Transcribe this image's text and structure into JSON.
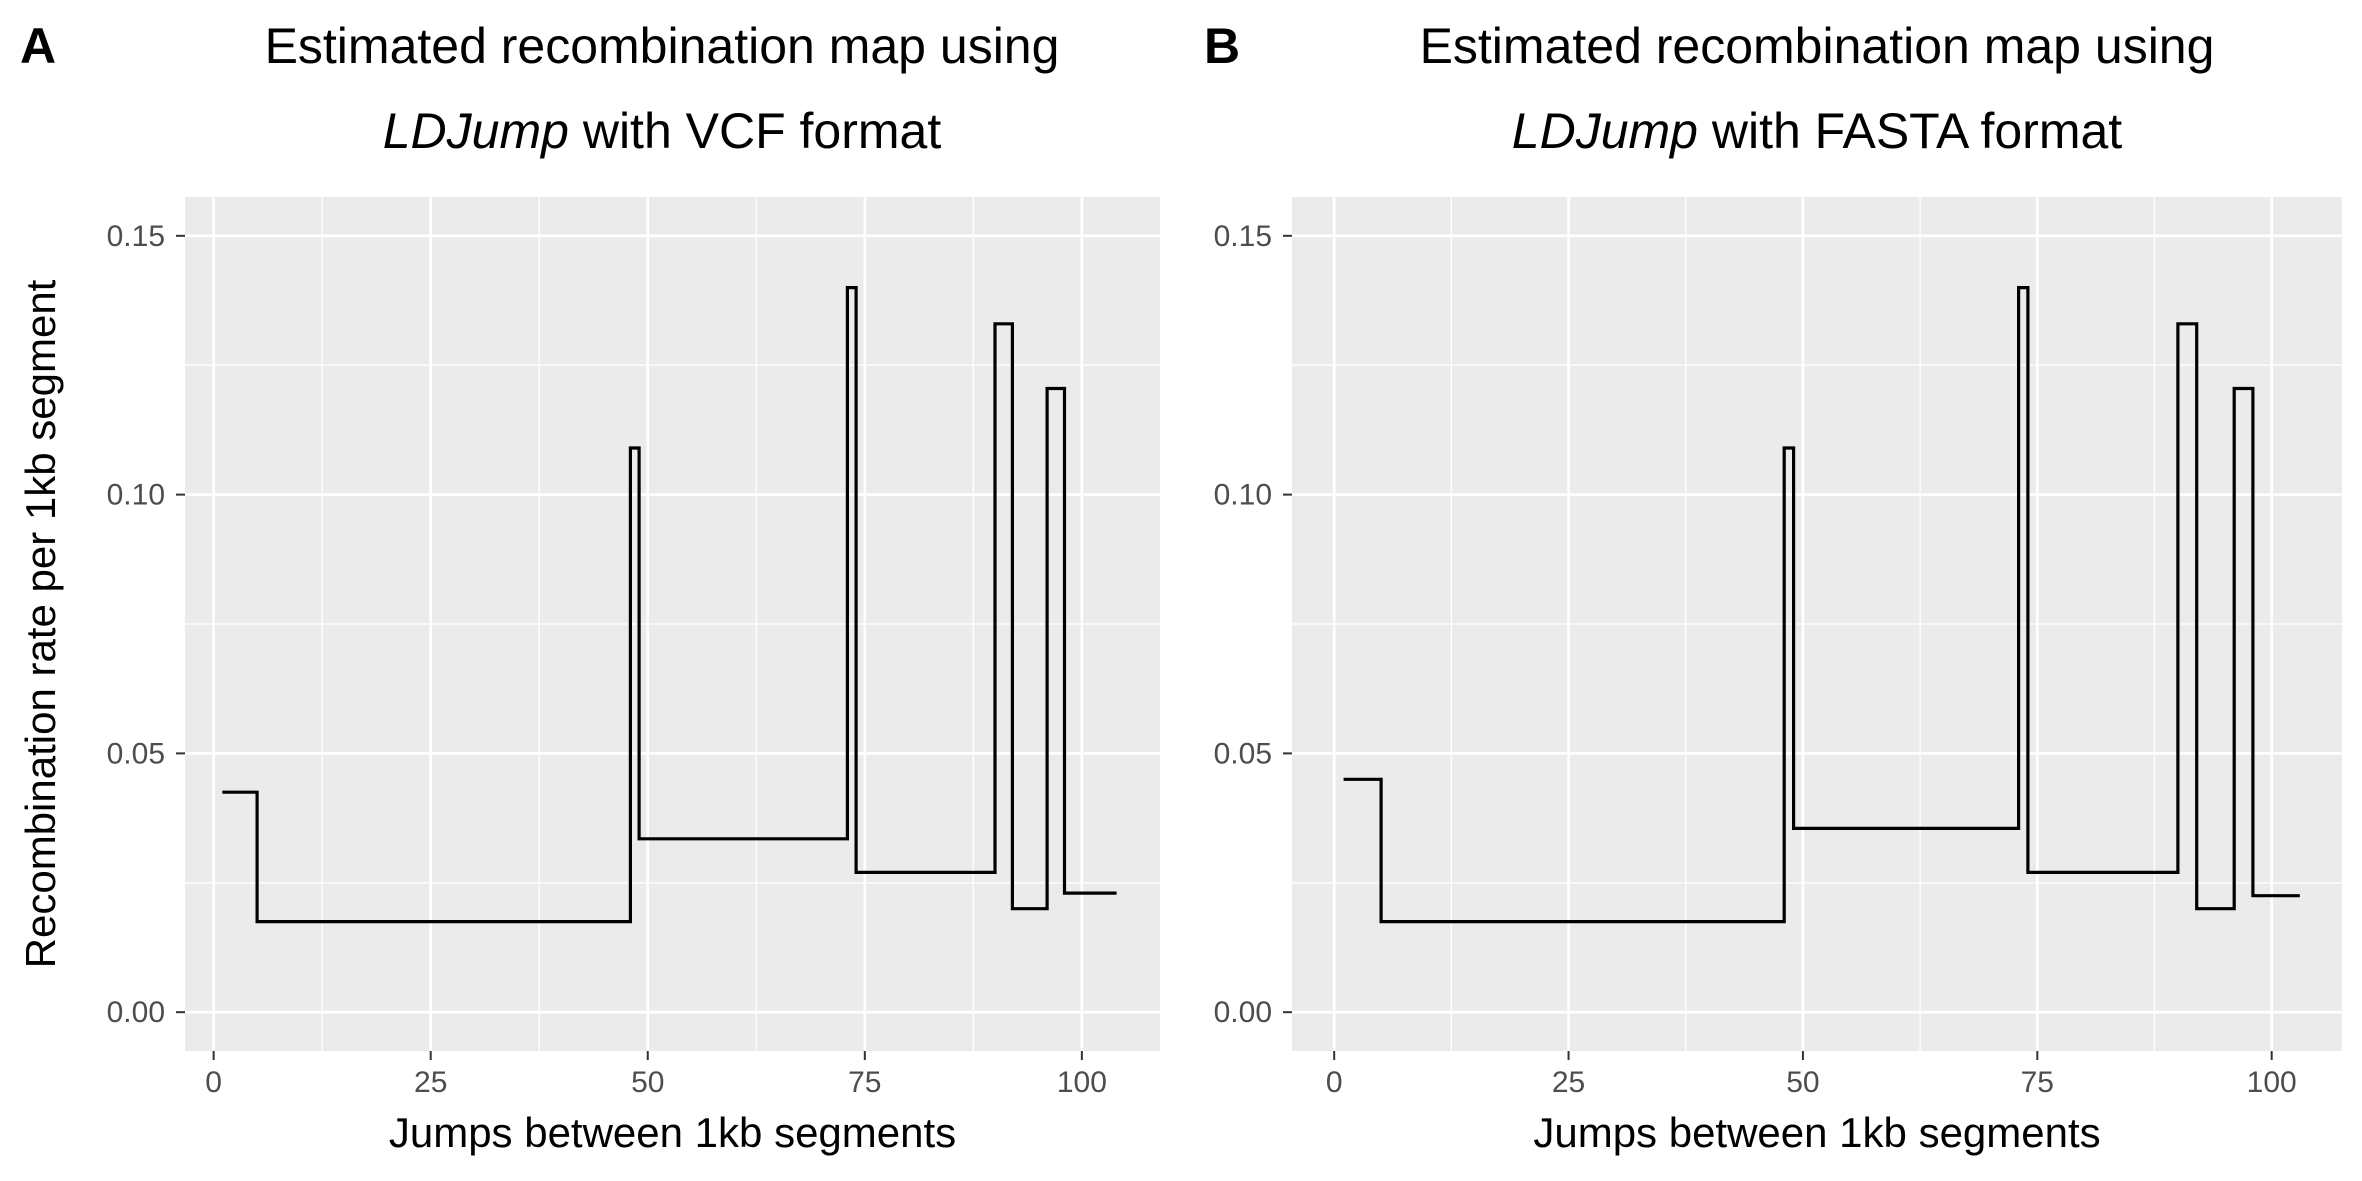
{
  "chart_data": [
    {
      "type": "line",
      "step": true,
      "panel_letter": "A",
      "title_italic": "LDJump",
      "title_line1": "Estimated recombination map using",
      "title_line2_rest": " with VCF format",
      "xlabel": "Jumps between 1kb segments",
      "ylabel": "Recombination rate per 1kb segment",
      "xlim": [
        -3.3,
        109
      ],
      "ylim": [
        -0.0075,
        0.1575
      ],
      "xticks": [
        0,
        25,
        50,
        75,
        100
      ],
      "xtick_labels": [
        "0",
        "25",
        "50",
        "75",
        "100"
      ],
      "yticks": [
        0.0,
        0.05,
        0.1,
        0.15
      ],
      "ytick_labels": [
        "0.00",
        "0.05",
        "0.10",
        "0.15"
      ],
      "x": [
        1,
        5,
        5,
        48,
        48,
        49,
        49,
        73,
        73,
        74,
        74,
        90,
        90,
        92,
        92,
        96,
        96,
        98,
        98,
        104
      ],
      "y": [
        0.0425,
        0.0425,
        0.0175,
        0.0175,
        0.109,
        0.109,
        0.0335,
        0.0335,
        0.14,
        0.14,
        0.027,
        0.027,
        0.133,
        0.133,
        0.02,
        0.02,
        0.1205,
        0.1205,
        0.023,
        0.023
      ],
      "legend": "none"
    },
    {
      "type": "line",
      "step": true,
      "panel_letter": "B",
      "title_italic": "LDJump",
      "title_line1": "Estimated recombination map using",
      "title_line2_rest": " with FASTA format",
      "xlabel": "Jumps between 1kb segments",
      "ylabel": "",
      "xlim": [
        -4.5,
        107.5
      ],
      "ylim": [
        -0.0075,
        0.1575
      ],
      "xticks": [
        0,
        25,
        50,
        75,
        100
      ],
      "xtick_labels": [
        "0",
        "25",
        "50",
        "75",
        "100"
      ],
      "yticks": [
        0.0,
        0.05,
        0.1,
        0.15
      ],
      "ytick_labels": [
        "0.00",
        "0.05",
        "0.10",
        "0.15"
      ],
      "x": [
        1,
        5,
        5,
        48,
        48,
        49,
        49,
        73,
        73,
        74,
        74,
        90,
        90,
        92,
        92,
        96,
        96,
        98,
        98,
        103
      ],
      "y": [
        0.045,
        0.045,
        0.0175,
        0.0175,
        0.109,
        0.109,
        0.0355,
        0.0355,
        0.14,
        0.14,
        0.027,
        0.027,
        0.133,
        0.133,
        0.02,
        0.02,
        0.1205,
        0.1205,
        0.0225,
        0.0225
      ],
      "legend": "none"
    }
  ]
}
